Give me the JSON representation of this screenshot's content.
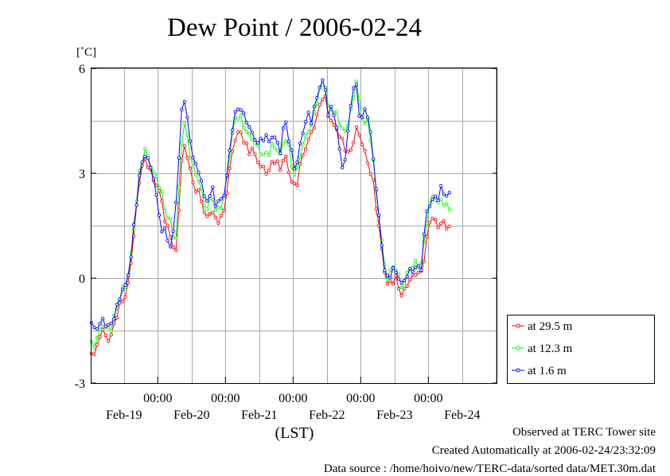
{
  "chart_data": {
    "type": "line",
    "title": "Dew Point / 2006-02-24",
    "ylabel": "[˚C]",
    "xlabel": "(LST)",
    "ylim": [
      -3,
      6
    ],
    "yticks": [
      {
        "value": 6,
        "label": "6"
      },
      {
        "value": 3,
        "label": "3"
      },
      {
        "value": 0,
        "label": "0"
      },
      {
        "value": -3,
        "label": "-3"
      }
    ],
    "x_domain_days": [
      -0.98,
      5.02
    ],
    "midnight_tick_label": "00:00",
    "date_labels": [
      "Feb-19",
      "Feb-20",
      "Feb-21",
      "Feb-22",
      "Feb-23",
      "Feb-24"
    ],
    "grid": true,
    "legend_position": "right",
    "series": [
      {
        "name": "at 29.5 m",
        "color": "#ff0000",
        "anchors": [
          [
            -0.98,
            -2.1
          ],
          [
            -0.92,
            -2.2
          ],
          [
            -0.86,
            -1.6
          ],
          [
            -0.8,
            -1.5
          ],
          [
            -0.74,
            -1.8
          ],
          [
            -0.68,
            -1.6
          ],
          [
            -0.6,
            -1.0
          ],
          [
            -0.52,
            -0.6
          ],
          [
            -0.46,
            -0.5
          ],
          [
            -0.4,
            0.4
          ],
          [
            -0.34,
            1.5
          ],
          [
            -0.28,
            2.7
          ],
          [
            -0.22,
            3.3
          ],
          [
            -0.17,
            3.4
          ],
          [
            -0.12,
            3.1
          ],
          [
            -0.06,
            2.8
          ],
          [
            0.0,
            2.6
          ],
          [
            0.06,
            2.2
          ],
          [
            0.12,
            1.5
          ],
          [
            0.2,
            1.2
          ],
          [
            0.26,
            0.5
          ],
          [
            0.3,
            1.5
          ],
          [
            0.34,
            3.2
          ],
          [
            0.4,
            3.8
          ],
          [
            0.46,
            3.3
          ],
          [
            0.52,
            2.7
          ],
          [
            0.58,
            2.5
          ],
          [
            0.64,
            2.3
          ],
          [
            0.68,
            1.9
          ],
          [
            0.74,
            1.7
          ],
          [
            0.8,
            2.0
          ],
          [
            0.86,
            1.6
          ],
          [
            0.92,
            1.7
          ],
          [
            0.98,
            1.9
          ],
          [
            1.04,
            2.8
          ],
          [
            1.1,
            3.6
          ],
          [
            1.16,
            4.1
          ],
          [
            1.22,
            4.2
          ],
          [
            1.28,
            3.9
          ],
          [
            1.34,
            3.6
          ],
          [
            1.4,
            3.7
          ],
          [
            1.46,
            3.4
          ],
          [
            1.52,
            3.2
          ],
          [
            1.58,
            3.1
          ],
          [
            1.64,
            3.0
          ],
          [
            1.7,
            3.4
          ],
          [
            1.76,
            3.3
          ],
          [
            1.82,
            3.1
          ],
          [
            1.88,
            3.6
          ],
          [
            1.94,
            3.0
          ],
          [
            2.0,
            2.7
          ],
          [
            2.04,
            2.5
          ],
          [
            2.1,
            3.2
          ],
          [
            2.16,
            3.6
          ],
          [
            2.22,
            3.9
          ],
          [
            2.28,
            4.2
          ],
          [
            2.34,
            4.5
          ],
          [
            2.4,
            5.0
          ],
          [
            2.46,
            5.3
          ],
          [
            2.52,
            4.7
          ],
          [
            2.58,
            4.4
          ],
          [
            2.64,
            4.3
          ],
          [
            2.7,
            4.0
          ],
          [
            2.76,
            3.8
          ],
          [
            2.82,
            3.5
          ],
          [
            2.88,
            3.8
          ],
          [
            2.94,
            4.3
          ],
          [
            3.0,
            4.0
          ],
          [
            3.06,
            3.6
          ],
          [
            3.12,
            3.2
          ],
          [
            3.18,
            2.8
          ],
          [
            3.24,
            1.9
          ],
          [
            3.3,
            1.0
          ],
          [
            3.36,
            0.1
          ],
          [
            3.4,
            -0.2
          ],
          [
            3.46,
            -0.1
          ],
          [
            3.52,
            0.0
          ],
          [
            3.58,
            -0.4
          ],
          [
            3.62,
            -0.5
          ],
          [
            3.68,
            -0.2
          ],
          [
            3.74,
            0.0
          ],
          [
            3.8,
            0.1
          ],
          [
            3.86,
            0.2
          ],
          [
            3.9,
            0.1
          ],
          [
            3.96,
            0.9
          ],
          [
            4.02,
            1.6
          ],
          [
            4.08,
            1.8
          ],
          [
            4.14,
            1.4
          ],
          [
            4.2,
            1.7
          ],
          [
            4.26,
            1.4
          ],
          [
            4.3,
            1.6
          ],
          [
            4.34,
            1.3
          ]
        ]
      },
      {
        "name": "at 12.3 m",
        "color": "#00ff00",
        "anchors": [
          [
            -0.98,
            -1.9
          ],
          [
            -0.92,
            -1.9
          ],
          [
            -0.86,
            -1.5
          ],
          [
            -0.8,
            -1.3
          ],
          [
            -0.74,
            -1.5
          ],
          [
            -0.68,
            -1.4
          ],
          [
            -0.6,
            -0.8
          ],
          [
            -0.52,
            -0.3
          ],
          [
            -0.46,
            -0.2
          ],
          [
            -0.4,
            0.6
          ],
          [
            -0.34,
            1.7
          ],
          [
            -0.28,
            2.9
          ],
          [
            -0.22,
            3.5
          ],
          [
            -0.17,
            3.7
          ],
          [
            -0.12,
            3.3
          ],
          [
            -0.06,
            3.0
          ],
          [
            0.0,
            2.8
          ],
          [
            0.06,
            2.4
          ],
          [
            0.12,
            1.8
          ],
          [
            0.2,
            1.6
          ],
          [
            0.26,
            0.8
          ],
          [
            0.3,
            2.1
          ],
          [
            0.34,
            3.7
          ],
          [
            0.4,
            4.5
          ],
          [
            0.46,
            3.7
          ],
          [
            0.52,
            3.2
          ],
          [
            0.58,
            2.9
          ],
          [
            0.64,
            2.6
          ],
          [
            0.68,
            2.1
          ],
          [
            0.74,
            2.0
          ],
          [
            0.8,
            2.4
          ],
          [
            0.86,
            1.9
          ],
          [
            0.92,
            2.0
          ],
          [
            0.98,
            2.3
          ],
          [
            1.04,
            3.2
          ],
          [
            1.1,
            4.1
          ],
          [
            1.16,
            4.7
          ],
          [
            1.22,
            4.6
          ],
          [
            1.28,
            4.3
          ],
          [
            1.34,
            4.1
          ],
          [
            1.4,
            4.0
          ],
          [
            1.46,
            3.8
          ],
          [
            1.52,
            3.6
          ],
          [
            1.58,
            3.5
          ],
          [
            1.64,
            3.6
          ],
          [
            1.7,
            3.8
          ],
          [
            1.76,
            3.7
          ],
          [
            1.82,
            3.5
          ],
          [
            1.88,
            4.1
          ],
          [
            1.94,
            3.7
          ],
          [
            2.0,
            3.0
          ],
          [
            2.04,
            2.9
          ],
          [
            2.1,
            3.5
          ],
          [
            2.16,
            3.9
          ],
          [
            2.22,
            4.2
          ],
          [
            2.28,
            4.4
          ],
          [
            2.34,
            5.0
          ],
          [
            2.4,
            5.4
          ],
          [
            2.46,
            5.7
          ],
          [
            2.52,
            4.9
          ],
          [
            2.58,
            4.8
          ],
          [
            2.64,
            4.7
          ],
          [
            2.7,
            4.4
          ],
          [
            2.76,
            4.1
          ],
          [
            2.82,
            4.5
          ],
          [
            2.88,
            5.0
          ],
          [
            2.94,
            5.7
          ],
          [
            3.0,
            4.6
          ],
          [
            3.06,
            4.5
          ],
          [
            3.12,
            4.4
          ],
          [
            3.18,
            3.5
          ],
          [
            3.24,
            2.2
          ],
          [
            3.3,
            1.3
          ],
          [
            3.36,
            0.2
          ],
          [
            3.4,
            0.0
          ],
          [
            3.46,
            0.3
          ],
          [
            3.52,
            0.3
          ],
          [
            3.58,
            -0.1
          ],
          [
            3.62,
            -0.3
          ],
          [
            3.68,
            0.1
          ],
          [
            3.74,
            0.3
          ],
          [
            3.8,
            0.4
          ],
          [
            3.86,
            0.4
          ],
          [
            3.9,
            0.4
          ],
          [
            3.96,
            1.4
          ],
          [
            4.02,
            2.1
          ],
          [
            4.08,
            2.4
          ],
          [
            4.14,
            2.1
          ],
          [
            4.2,
            2.3
          ],
          [
            4.26,
            2.0
          ],
          [
            4.3,
            2.1
          ],
          [
            4.34,
            1.9
          ]
        ]
      },
      {
        "name": "at 1.6 m",
        "color": "#0000ff",
        "anchors": [
          [
            -0.98,
            -1.3
          ],
          [
            -0.92,
            -1.5
          ],
          [
            -0.86,
            -1.3
          ],
          [
            -0.8,
            -1.2
          ],
          [
            -0.74,
            -1.4
          ],
          [
            -0.68,
            -1.3
          ],
          [
            -0.6,
            -0.8
          ],
          [
            -0.52,
            -0.3
          ],
          [
            -0.46,
            -0.2
          ],
          [
            -0.4,
            0.6
          ],
          [
            -0.34,
            1.7
          ],
          [
            -0.28,
            2.8
          ],
          [
            -0.22,
            3.4
          ],
          [
            -0.17,
            3.6
          ],
          [
            -0.12,
            3.2
          ],
          [
            -0.06,
            2.9
          ],
          [
            0.0,
            2.0
          ],
          [
            0.06,
            1.4
          ],
          [
            0.12,
            1.3
          ],
          [
            0.2,
            0.8
          ],
          [
            0.26,
            1.9
          ],
          [
            0.3,
            3.0
          ],
          [
            0.34,
            4.6
          ],
          [
            0.4,
            5.2
          ],
          [
            0.46,
            4.1
          ],
          [
            0.52,
            3.5
          ],
          [
            0.58,
            3.1
          ],
          [
            0.64,
            2.9
          ],
          [
            0.68,
            2.3
          ],
          [
            0.74,
            2.2
          ],
          [
            0.8,
            2.6
          ],
          [
            0.86,
            2.1
          ],
          [
            0.92,
            2.2
          ],
          [
            0.98,
            2.4
          ],
          [
            1.04,
            3.2
          ],
          [
            1.1,
            4.3
          ],
          [
            1.16,
            4.8
          ],
          [
            1.22,
            4.9
          ],
          [
            1.28,
            4.6
          ],
          [
            1.34,
            4.4
          ],
          [
            1.4,
            4.1
          ],
          [
            1.46,
            3.9
          ],
          [
            1.52,
            3.9
          ],
          [
            1.58,
            4.1
          ],
          [
            1.64,
            3.9
          ],
          [
            1.7,
            4.1
          ],
          [
            1.76,
            3.9
          ],
          [
            1.82,
            3.6
          ],
          [
            1.88,
            4.7
          ],
          [
            1.94,
            3.9
          ],
          [
            2.0,
            3.4
          ],
          [
            2.04,
            3.0
          ],
          [
            2.1,
            3.8
          ],
          [
            2.16,
            4.3
          ],
          [
            2.22,
            4.7
          ],
          [
            2.28,
            4.5
          ],
          [
            2.34,
            5.1
          ],
          [
            2.4,
            5.5
          ],
          [
            2.46,
            5.7
          ],
          [
            2.52,
            4.7
          ],
          [
            2.58,
            4.9
          ],
          [
            2.64,
            4.4
          ],
          [
            2.7,
            3.4
          ],
          [
            2.76,
            3.1
          ],
          [
            2.82,
            4.4
          ],
          [
            2.88,
            5.4
          ],
          [
            2.94,
            5.5
          ],
          [
            3.0,
            4.3
          ],
          [
            3.06,
            4.9
          ],
          [
            3.12,
            4.5
          ],
          [
            3.18,
            3.6
          ],
          [
            3.24,
            2.3
          ],
          [
            3.3,
            1.2
          ],
          [
            3.36,
            0.1
          ],
          [
            3.4,
            0.0
          ],
          [
            3.46,
            0.2
          ],
          [
            3.52,
            0.2
          ],
          [
            3.58,
            -0.1
          ],
          [
            3.62,
            -0.2
          ],
          [
            3.68,
            0.1
          ],
          [
            3.74,
            0.2
          ],
          [
            3.8,
            0.3
          ],
          [
            3.86,
            0.3
          ],
          [
            3.9,
            0.3
          ],
          [
            3.96,
            1.8
          ],
          [
            4.02,
            2.1
          ],
          [
            4.08,
            2.3
          ],
          [
            4.14,
            2.3
          ],
          [
            4.2,
            2.6
          ],
          [
            4.26,
            2.3
          ],
          [
            4.3,
            2.5
          ],
          [
            4.34,
            2.2
          ]
        ]
      }
    ]
  },
  "footer": {
    "line1": "Observed at TERC Tower site",
    "line2": "Created Automatically at 2006-02-24/23:32:09",
    "line3": "Data source : /home/hoivo/new/TERC-data/sorted  data/MET.30m.dat"
  }
}
